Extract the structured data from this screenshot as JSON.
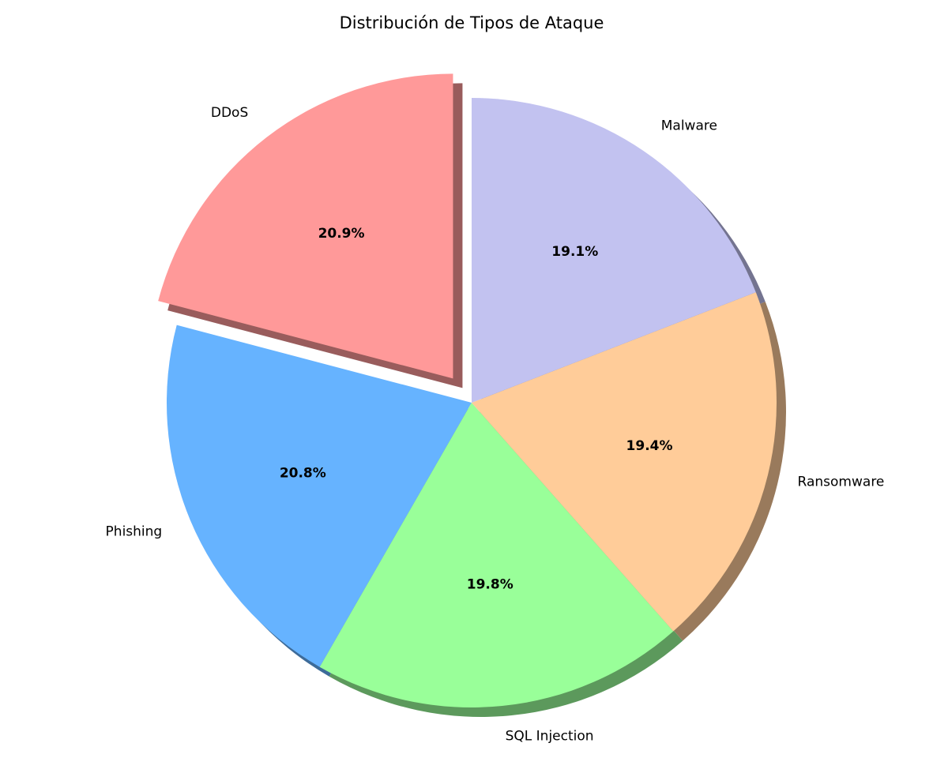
{
  "chart_data": {
    "type": "pie",
    "title": "Distribución de Tipos de Ataque",
    "slices": [
      {
        "label": "DDoS",
        "value": 20.9,
        "pct_text": "20.9%",
        "color": "#ff9999",
        "exploded": true
      },
      {
        "label": "Phishing",
        "value": 20.8,
        "pct_text": "20.8%",
        "color": "#66b3ff",
        "exploded": false
      },
      {
        "label": "SQL Injection",
        "value": 19.8,
        "pct_text": "19.8%",
        "color": "#99ff99",
        "exploded": false
      },
      {
        "label": "Ransomware",
        "value": 19.4,
        "pct_text": "19.4%",
        "color": "#ffcc99",
        "exploded": false
      },
      {
        "label": "Malware",
        "value": 19.1,
        "pct_text": "19.1%",
        "color": "#c2c2f0",
        "exploded": false
      }
    ],
    "start_angle": 90,
    "direction": "counterclockwise",
    "shadow": true,
    "legend": "none"
  }
}
